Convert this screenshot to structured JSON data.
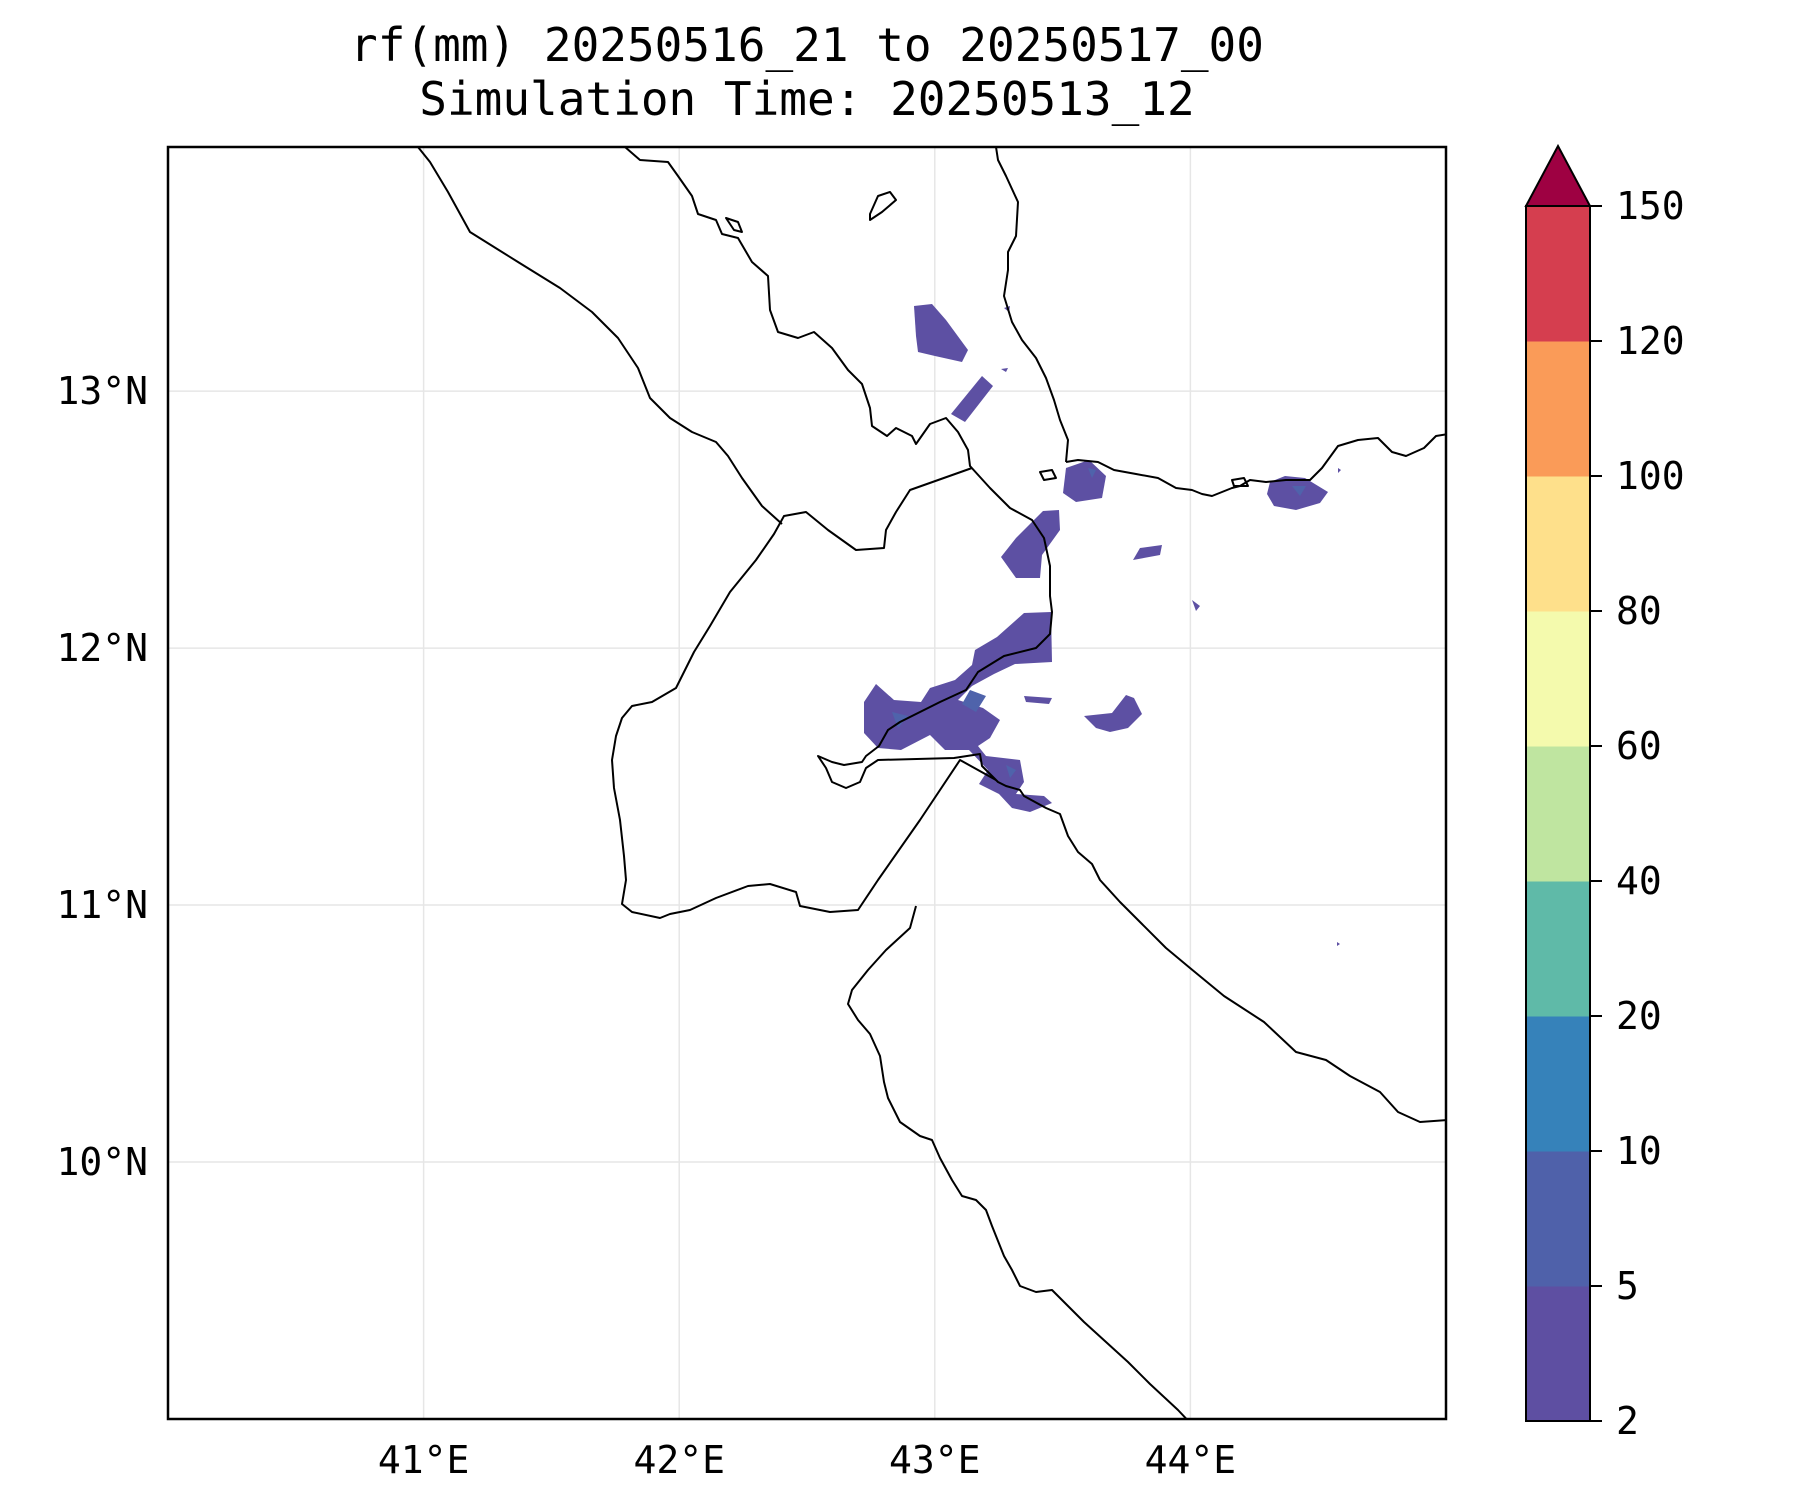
{
  "title_line1": "rf(mm) 20250516_21 to 20250517_00",
  "title_line2": "Simulation Time: 20250513_12",
  "map": {
    "lon_range": [
      40.0,
      45.0
    ],
    "lat_range": [
      9.0,
      13.95
    ],
    "lon_ticks": [
      {
        "value": 41,
        "label": "41°E"
      },
      {
        "value": 42,
        "label": "42°E"
      },
      {
        "value": 43,
        "label": "43°E"
      },
      {
        "value": 44,
        "label": "44°E"
      }
    ],
    "lat_ticks": [
      {
        "value": 13,
        "label": "13°N"
      },
      {
        "value": 12,
        "label": "12°N"
      },
      {
        "value": 11,
        "label": "11°N"
      },
      {
        "value": 10,
        "label": "10°N"
      }
    ],
    "grid": true,
    "coastline_color": "#000000",
    "grid_color": "#e6e6e6"
  },
  "colorbar": {
    "levels": [
      "2",
      "5",
      "10",
      "20",
      "40",
      "60",
      "80",
      "100",
      "120",
      "150"
    ],
    "colors": [
      "#5e4fa2",
      "#4f61aa",
      "#3682ba",
      "#5fbaa8",
      "#bfe5a0",
      "#f4faad",
      "#fee08b",
      "#fa9b58",
      "#d53e4f"
    ],
    "extend_color": "#9e0142",
    "extend": "max",
    "units": "mm"
  },
  "rain_color": "#5d50a3",
  "rain_color_inner": "#4f63ab"
}
